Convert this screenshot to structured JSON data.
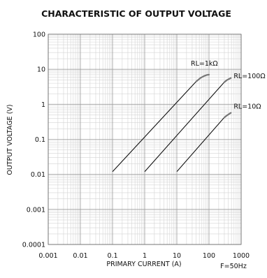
{
  "chart_data": {
    "type": "line",
    "title": "CHARACTERISTIC OF OUTPUT VOLTAGE",
    "xlabel": "PRIMARY CURRENT (A)",
    "ylabel": "OUTPUT VOLTAGE (V)",
    "x_scale": "log",
    "y_scale": "log",
    "xlim": [
      0.001,
      1000
    ],
    "ylim": [
      0.0001,
      100
    ],
    "grid": true,
    "x_ticks": [
      0.001,
      0.01,
      0.1,
      1,
      10,
      100,
      1000
    ],
    "x_tick_labels": [
      "0.001",
      "0.01",
      "0.1",
      "1",
      "10",
      "100",
      "1000"
    ],
    "y_ticks": [
      0.0001,
      0.001,
      0.01,
      0.1,
      1,
      10,
      100
    ],
    "y_tick_labels": [
      "0.0001",
      "0.001",
      "0.01",
      "0.1",
      "1",
      "10",
      "100"
    ],
    "note": "F=50Hz",
    "series": [
      {
        "name": "RL=1kΩ",
        "x": [
          0.1,
          40,
          55,
          70,
          85,
          100
        ],
        "y": [
          0.012,
          4.5,
          5.7,
          6.4,
          6.9,
          7.0
        ]
      },
      {
        "name": "RL=100Ω",
        "x": [
          1,
          300,
          360,
          420,
          480
        ],
        "y": [
          0.012,
          4.3,
          4.9,
          5.3,
          5.6
        ]
      },
      {
        "name": "RL=10Ω",
        "x": [
          10,
          300,
          360,
          420,
          480
        ],
        "y": [
          0.012,
          0.42,
          0.48,
          0.53,
          0.57
        ]
      }
    ]
  }
}
